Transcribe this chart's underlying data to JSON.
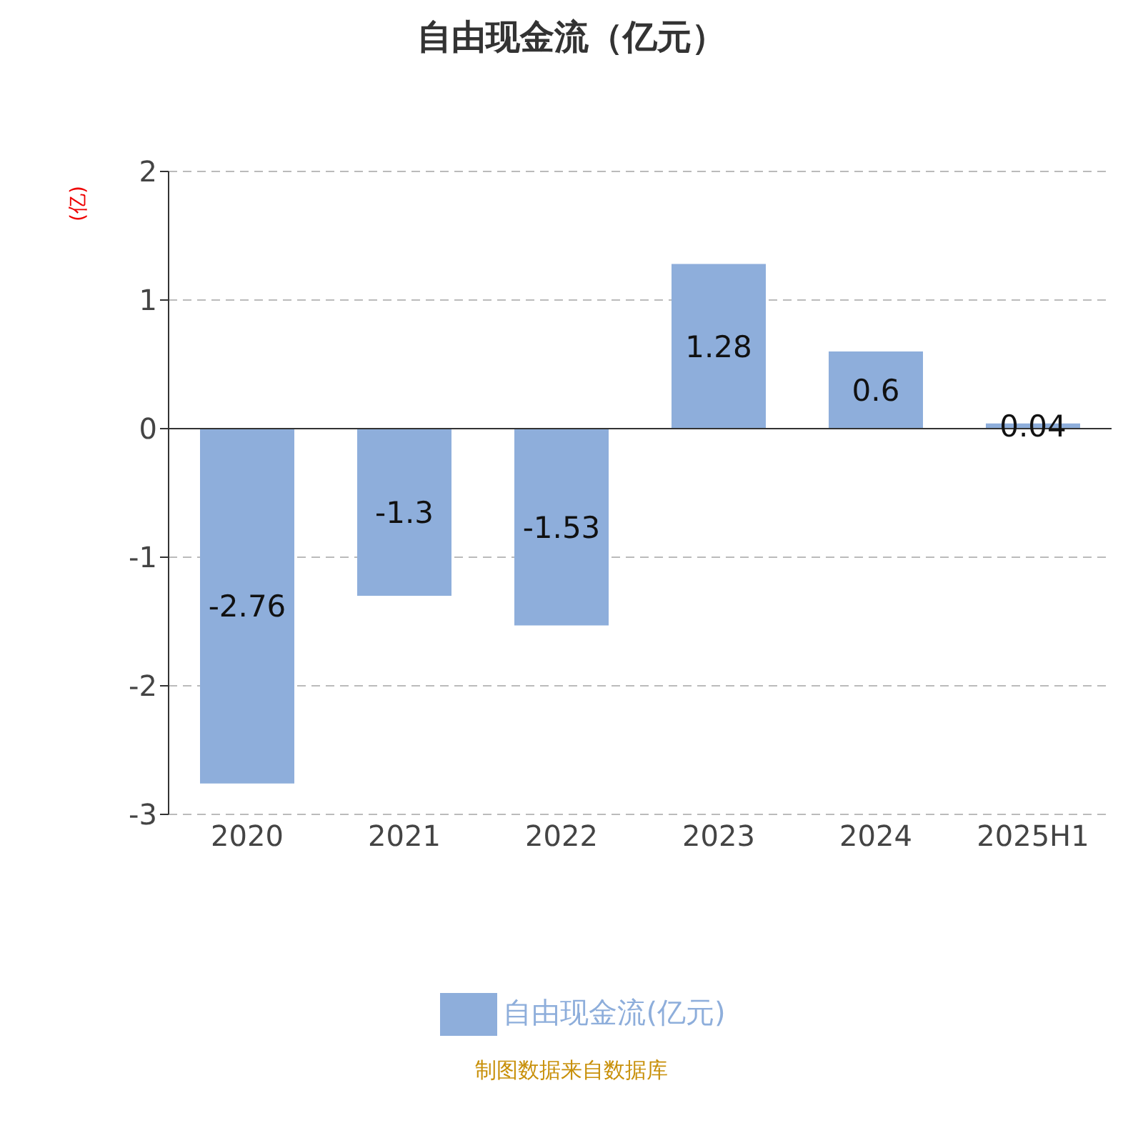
{
  "chart_data": {
    "type": "bar",
    "title": "自由现金流（亿元）",
    "ylabel": "(亿)",
    "categories": [
      "2020",
      "2021",
      "2022",
      "2023",
      "2024",
      "2025H1"
    ],
    "series": [
      {
        "name": "自由现金流(亿元)",
        "color": "#8eaedb",
        "values": [
          -2.76,
          -1.3,
          -1.53,
          1.28,
          0.6,
          0.04
        ]
      }
    ],
    "ylim": [
      -3,
      2
    ],
    "yticks": [
      -3,
      -2,
      -1,
      0,
      1,
      2
    ],
    "grid": "y",
    "legend": "bottom",
    "data_labels": true,
    "annotations": [
      "制图数据来自数据库"
    ]
  }
}
